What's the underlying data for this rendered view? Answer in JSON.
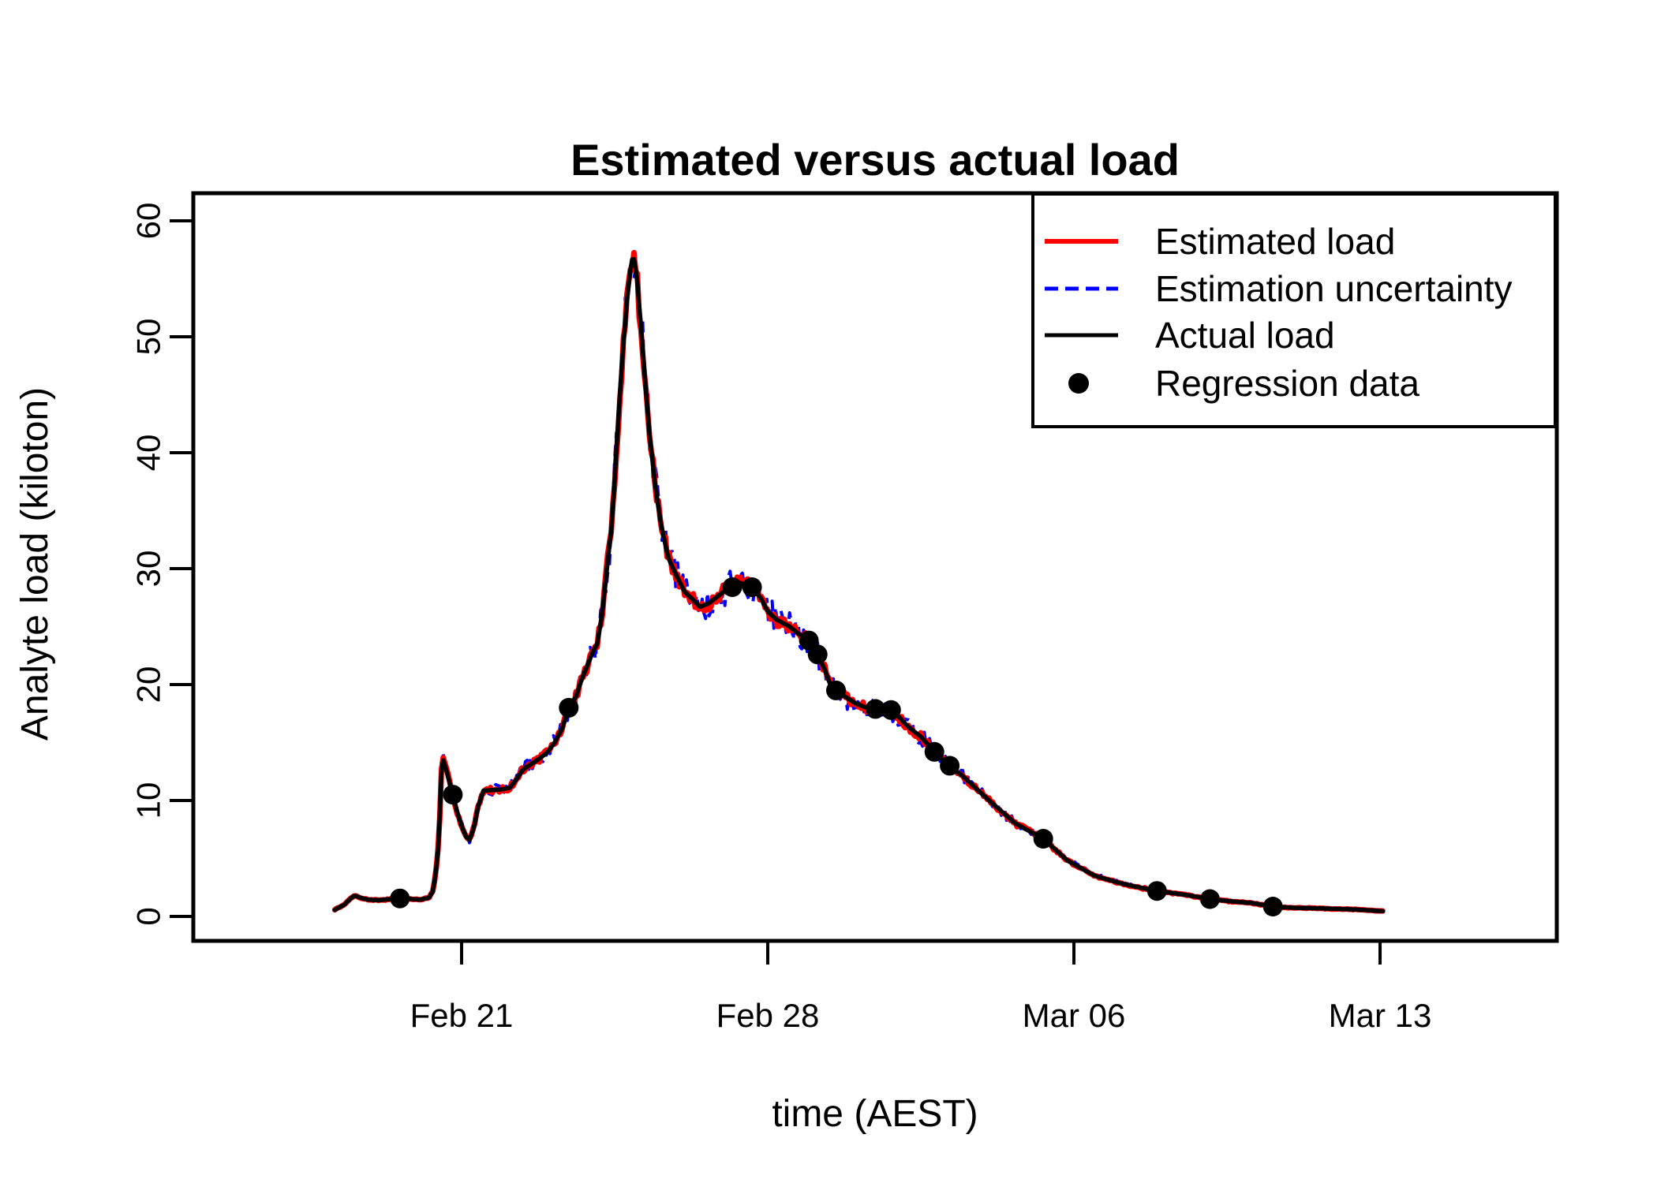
{
  "figure": {
    "title": "Estimated versus actual load",
    "x_axis": {
      "label": "time (AEST)"
    },
    "y_axis": {
      "label": "Analyte load (kiloton)"
    },
    "legend": {
      "items": [
        {
          "label": "Estimated load",
          "type": "line",
          "style": "solid",
          "color": "#ff0000"
        },
        {
          "label": "Estimation uncertainty",
          "type": "line",
          "style": "dashed",
          "color": "#0000ff"
        },
        {
          "label": "Actual load",
          "type": "line",
          "style": "solid",
          "color": "#000000"
        },
        {
          "label": "Regression data",
          "type": "point",
          "color": "#000000"
        }
      ]
    }
  },
  "chart_data": {
    "type": "line",
    "title": "Estimated versus actual load",
    "xlabel": "time (AEST)",
    "ylabel": "Analyte load (kiloton)",
    "x_unit": "days relative to Feb 21",
    "x_range_days": [
      -2.9,
      21.06
    ],
    "xlim_days": [
      -6.1,
      25.0
    ],
    "ylim": [
      0,
      60
    ],
    "grid": false,
    "legend_position": "topright",
    "x_ticks": [
      {
        "label": "Feb 21",
        "day": 0
      },
      {
        "label": "Feb 28",
        "day": 7
      },
      {
        "label": "Mar 06",
        "day": 14
      },
      {
        "label": "Mar 13",
        "day": 21
      }
    ],
    "y_ticks": [
      0,
      10,
      20,
      30,
      40,
      50,
      60
    ],
    "colors": {
      "estimated": "#ff0000",
      "uncertainty": "#0000ff",
      "actual": "#000000",
      "points": "#000000"
    },
    "series": [
      {
        "name": "Actual load",
        "color": "#000000",
        "style": "solid",
        "points": [
          [
            -2.9,
            0.55
          ],
          [
            -2.8,
            0.8
          ],
          [
            -2.7,
            0.95
          ],
          [
            -2.55,
            1.5
          ],
          [
            -2.45,
            1.8
          ],
          [
            -2.3,
            1.6
          ],
          [
            -2.15,
            1.45
          ],
          [
            -1.9,
            1.4
          ],
          [
            -1.6,
            1.5
          ],
          [
            -1.41,
            1.55
          ],
          [
            -1.15,
            1.5
          ],
          [
            -0.95,
            1.45
          ],
          [
            -0.75,
            1.6
          ],
          [
            -0.65,
            2.2
          ],
          [
            -0.55,
            5
          ],
          [
            -0.48,
            10
          ],
          [
            -0.45,
            13.7
          ],
          [
            -0.4,
            13.3
          ],
          [
            -0.33,
            12.3
          ],
          [
            -0.2,
            10.5
          ],
          [
            -0.1,
            9
          ],
          [
            0,
            7.8
          ],
          [
            0.1,
            6.9
          ],
          [
            0.18,
            6.6
          ],
          [
            0.28,
            7.6
          ],
          [
            0.38,
            9.5
          ],
          [
            0.5,
            10.85
          ],
          [
            0.7,
            10.9
          ],
          [
            0.9,
            10.95
          ],
          [
            1.1,
            11.1
          ],
          [
            1.25,
            11.8
          ],
          [
            1.41,
            12.7
          ],
          [
            1.7,
            13.4
          ],
          [
            1.95,
            14.1
          ],
          [
            2.13,
            15
          ],
          [
            2.31,
            16.3
          ],
          [
            2.45,
            18
          ],
          [
            2.62,
            19
          ],
          [
            2.74,
            20.4
          ],
          [
            3.01,
            22.9
          ],
          [
            3.1,
            23.5
          ],
          [
            3.21,
            26
          ],
          [
            3.34,
            30.6
          ],
          [
            3.44,
            34
          ],
          [
            3.52,
            39
          ],
          [
            3.65,
            47
          ],
          [
            3.78,
            53
          ],
          [
            3.88,
            56.5
          ],
          [
            3.93,
            56.9
          ],
          [
            4,
            55.5
          ],
          [
            4.1,
            51
          ],
          [
            4.2,
            46
          ],
          [
            4.3,
            41.5
          ],
          [
            4.42,
            37.4
          ],
          [
            4.55,
            34
          ],
          [
            4.72,
            31
          ],
          [
            4.9,
            29.5
          ],
          [
            5.1,
            28
          ],
          [
            5.27,
            27.4
          ],
          [
            5.45,
            26.7
          ],
          [
            5.65,
            27
          ],
          [
            5.85,
            27.6
          ],
          [
            6.1,
            28.3
          ],
          [
            6.35,
            28.8
          ],
          [
            6.5,
            28.6
          ],
          [
            6.7,
            28.2
          ],
          [
            6.85,
            27.4
          ],
          [
            7,
            26.3
          ],
          [
            7.2,
            25.6
          ],
          [
            7.5,
            25
          ],
          [
            7.7,
            24.4
          ],
          [
            7.94,
            23.8
          ],
          [
            8.14,
            22.6
          ],
          [
            8.3,
            21.3
          ],
          [
            8.45,
            19.8
          ],
          [
            8.56,
            19.5
          ],
          [
            8.75,
            19
          ],
          [
            9,
            18.4
          ],
          [
            9.25,
            18
          ],
          [
            9.46,
            17.9
          ],
          [
            9.7,
            17.85
          ],
          [
            9.82,
            17.8
          ],
          [
            10,
            17.2
          ],
          [
            10.2,
            16.4
          ],
          [
            10.5,
            15.5
          ],
          [
            10.81,
            14.2
          ],
          [
            11,
            13.5
          ],
          [
            11.16,
            13
          ],
          [
            11.46,
            12.1
          ],
          [
            12.06,
            10
          ],
          [
            12.67,
            8
          ],
          [
            13.3,
            6.7
          ],
          [
            13.86,
            4.8
          ],
          [
            14.48,
            3.5
          ],
          [
            15.07,
            2.86
          ],
          [
            15.5,
            2.5
          ],
          [
            15.9,
            2.2
          ],
          [
            16.57,
            1.85
          ],
          [
            17.11,
            1.5
          ],
          [
            17.6,
            1.3
          ],
          [
            18.08,
            1.15
          ],
          [
            18.55,
            0.85
          ],
          [
            19,
            0.75
          ],
          [
            19.58,
            0.7
          ],
          [
            20.43,
            0.6
          ],
          [
            21.06,
            0.45
          ]
        ]
      },
      {
        "name": "Estimated load",
        "color": "#ff0000",
        "style": "solid",
        "basis": "Actual load",
        "noise_frac": 0.022
      },
      {
        "name": "Estimation uncertainty",
        "color": "#0000ff",
        "style": "dashed",
        "basis": "Actual load",
        "noise_frac": 0.05
      }
    ],
    "regression_points": [
      [
        -1.41,
        1.55
      ],
      [
        -0.2,
        10.5
      ],
      [
        2.45,
        18
      ],
      [
        6.19,
        28.4
      ],
      [
        6.64,
        28.4
      ],
      [
        7.94,
        23.8
      ],
      [
        8.14,
        22.6
      ],
      [
        8.56,
        19.5
      ],
      [
        9.46,
        17.9
      ],
      [
        9.82,
        17.8
      ],
      [
        10.81,
        14.2
      ],
      [
        11.16,
        13
      ],
      [
        13.3,
        6.7
      ],
      [
        15.9,
        2.2
      ],
      [
        17.11,
        1.5
      ],
      [
        18.55,
        0.85
      ]
    ]
  }
}
